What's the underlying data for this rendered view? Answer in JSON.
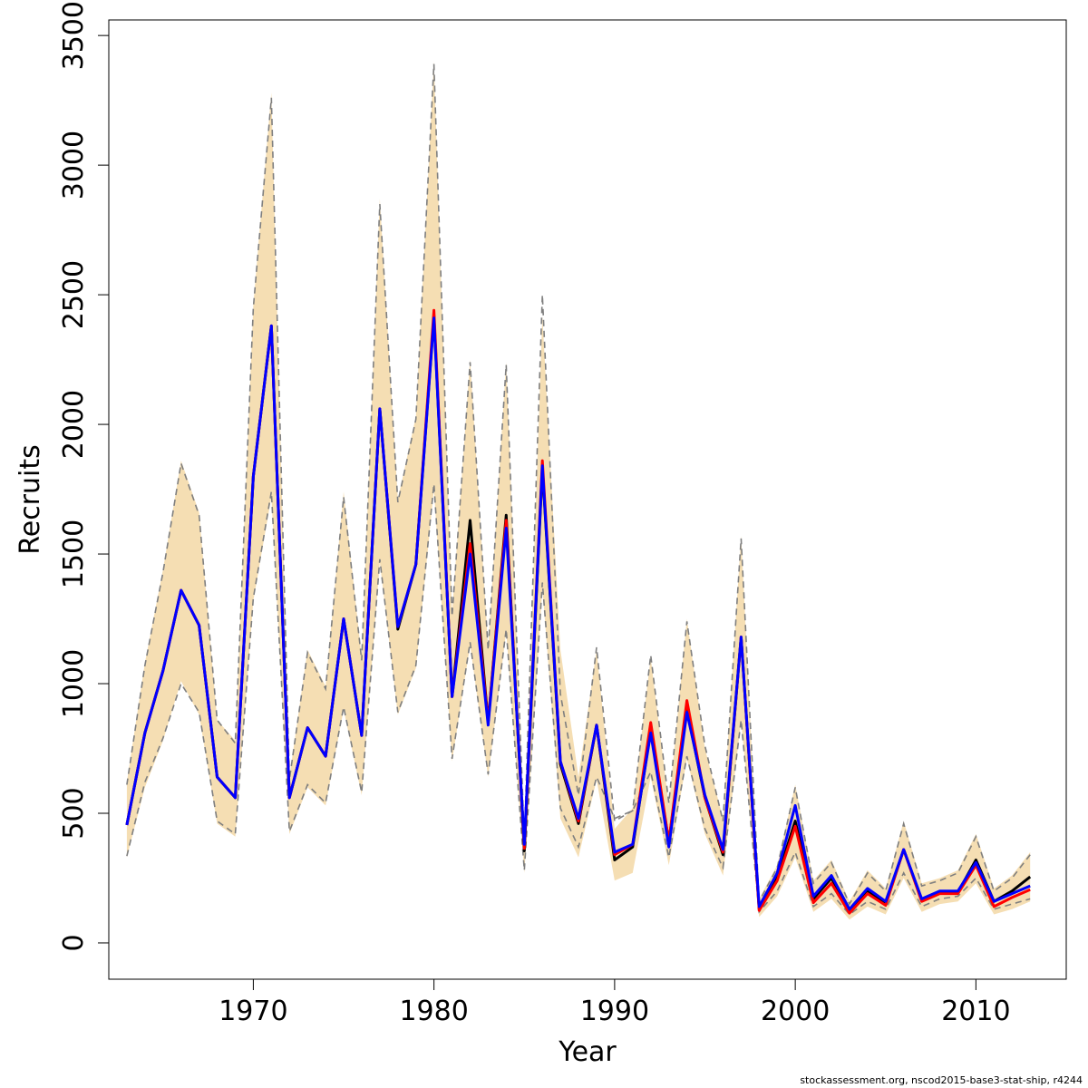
{
  "chart_data": {
    "type": "line",
    "xlabel": "Year",
    "ylabel": "Recruits",
    "xlim": [
      1962,
      2015
    ],
    "ylim": [
      -140,
      3560
    ],
    "x_ticks": [
      1970,
      1980,
      1990,
      2000,
      2010
    ],
    "y_ticks": [
      0,
      500,
      1000,
      1500,
      2000,
      2500,
      3000,
      3500
    ],
    "grid": false,
    "x": [
      1963,
      1964,
      1965,
      1966,
      1967,
      1968,
      1969,
      1970,
      1971,
      1972,
      1973,
      1974,
      1975,
      1976,
      1977,
      1978,
      1979,
      1980,
      1981,
      1982,
      1983,
      1984,
      1985,
      1986,
      1987,
      1988,
      1989,
      1990,
      1991,
      1992,
      1993,
      1994,
      1995,
      1996,
      1997,
      1998,
      1999,
      2000,
      2001,
      2002,
      2003,
      2004,
      2005,
      2006,
      2007,
      2008,
      2009,
      2010,
      2011,
      2012,
      2013
    ],
    "band": {
      "upper": [
        620,
        1080,
        1440,
        1860,
        1660,
        860,
        780,
        2460,
        3280,
        640,
        1130,
        990,
        1740,
        1100,
        2870,
        1710,
        2030,
        3400,
        1270,
        2250,
        1140,
        2240,
        410,
        2420,
        1130,
        640,
        1130,
        440,
        520,
        1100,
        530,
        1250,
        750,
        480,
        1570,
        170,
        300,
        610,
        240,
        320,
        160,
        280,
        210,
        470,
        230,
        250,
        280,
        420,
        210,
        260,
        350
      ],
      "lower": [
        330,
        600,
        780,
        1010,
        880,
        460,
        410,
        1320,
        1720,
        420,
        600,
        530,
        900,
        570,
        1470,
        880,
        1060,
        1750,
        700,
        1150,
        640,
        1200,
        270,
        1370,
        480,
        330,
        630,
        240,
        270,
        640,
        300,
        710,
        420,
        260,
        860,
        100,
        180,
        330,
        120,
        170,
        90,
        140,
        110,
        250,
        120,
        150,
        160,
        230,
        110,
        130,
        160
      ]
    },
    "dashed_lines": [
      {
        "name": "",
        "values": [
          335,
          620,
          790,
          1000,
          890,
          470,
          420,
          1330,
          1740,
          430,
          610,
          540,
          910,
          580,
          1480,
          890,
          1070,
          1770,
          710,
          1160,
          650,
          1210,
          280,
          1390,
          520,
          370,
          640,
          480,
          510,
          660,
          330,
          720,
          440,
          290,
          860,
          120,
          200,
          350,
          140,
          190,
          110,
          160,
          130,
          270,
          140,
          170,
          180,
          250,
          130,
          150,
          170
        ]
      },
      {
        "name": "",
        "values": [
          610,
          1070,
          1430,
          1850,
          1650,
          860,
          770,
          2450,
          3260,
          630,
          1120,
          980,
          1720,
          1090,
          2850,
          1700,
          2020,
          3390,
          1260,
          2240,
          1130,
          2230,
          400,
          2500,
          960,
          570,
          1140,
          470,
          510,
          1110,
          540,
          1240,
          760,
          470,
          1560,
          160,
          290,
          600,
          230,
          310,
          150,
          270,
          200,
          460,
          220,
          240,
          270,
          410,
          200,
          250,
          340
        ]
      }
    ],
    "series": [
      {
        "name": "",
        "color": "#000000",
        "values": [
          455,
          810,
          1050,
          1360,
          1225,
          640,
          560,
          1800,
          2380,
          560,
          830,
          720,
          1250,
          800,
          2060,
          1210,
          1460,
          2420,
          950,
          1630,
          850,
          1650,
          355,
          1830,
          690,
          460,
          840,
          320,
          370,
          820,
          390,
          900,
          560,
          340,
          1180,
          130,
          250,
          470,
          170,
          250,
          120,
          200,
          150,
          360,
          165,
          195,
          195,
          320,
          160,
          200,
          255
        ]
      },
      {
        "name": "",
        "color": "#ff0000",
        "values": [
          455,
          810,
          1050,
          1360,
          1225,
          640,
          560,
          1800,
          2380,
          560,
          830,
          720,
          1250,
          800,
          2060,
          1220,
          1460,
          2440,
          950,
          1540,
          850,
          1630,
          365,
          1860,
          700,
          470,
          840,
          340,
          380,
          850,
          390,
          935,
          560,
          350,
          1180,
          125,
          240,
          450,
          155,
          230,
          115,
          190,
          145,
          360,
          160,
          190,
          190,
          300,
          140,
          175,
          205
        ]
      },
      {
        "name": "",
        "color": "#0000ff",
        "values": [
          455,
          810,
          1050,
          1360,
          1225,
          640,
          560,
          1800,
          2380,
          560,
          830,
          720,
          1250,
          800,
          2060,
          1220,
          1460,
          2410,
          950,
          1500,
          840,
          1600,
          380,
          1840,
          700,
          480,
          840,
          350,
          380,
          810,
          370,
          890,
          570,
          360,
          1180,
          140,
          270,
          530,
          180,
          260,
          130,
          210,
          160,
          360,
          170,
          200,
          200,
          310,
          160,
          190,
          220
        ]
      }
    ]
  },
  "footer": "stockassessment.org, nscod2015-base3-stat-ship, r4244",
  "colors": {
    "band_fill": "#f5deb3",
    "dashed": "#7f7f7f",
    "axis": "#000000"
  }
}
